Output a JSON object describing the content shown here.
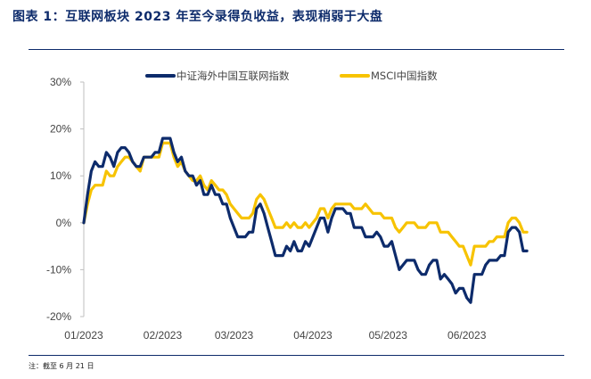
{
  "title": "图表 1：互联网板块 2023 年至今录得负收益，表现稍弱于大盘",
  "note": "注：截至 6 月 21 日",
  "colors": {
    "navy": "#0d2b6b",
    "gold": "#f7c300"
  },
  "chart_data": {
    "type": "line",
    "title": "",
    "xlabel": "",
    "ylabel": "",
    "ylim": [
      -20,
      30
    ],
    "yticks": [
      -20,
      -10,
      0,
      10,
      20,
      30
    ],
    "ytick_labels": [
      "-20%",
      "-10%",
      "0%",
      "10%",
      "20%",
      "30%"
    ],
    "xticks": [
      {
        "x": 0,
        "label": "01/2023"
      },
      {
        "x": 21,
        "label": "02/2023"
      },
      {
        "x": 40,
        "label": "03/2023"
      },
      {
        "x": 61,
        "label": "04/2023"
      },
      {
        "x": 81,
        "label": "05/2023"
      },
      {
        "x": 102,
        "label": "06/2023"
      }
    ],
    "xlim": [
      0,
      122
    ],
    "grid": false,
    "legend": "top",
    "series": [
      {
        "name": "中证海外中国互联网指数",
        "color": "#0d2b6b",
        "values": [
          [
            0,
            0
          ],
          [
            1,
            6
          ],
          [
            2,
            11
          ],
          [
            3,
            13
          ],
          [
            4,
            12
          ],
          [
            5,
            12
          ],
          [
            6,
            15
          ],
          [
            7,
            14
          ],
          [
            8,
            12
          ],
          [
            9,
            15
          ],
          [
            10,
            16
          ],
          [
            11,
            16
          ],
          [
            12,
            15
          ],
          [
            13,
            13
          ],
          [
            14,
            12
          ],
          [
            15,
            12
          ],
          [
            16,
            14
          ],
          [
            17,
            14
          ],
          [
            18,
            14
          ],
          [
            19,
            15
          ],
          [
            20,
            15
          ],
          [
            21,
            18
          ],
          [
            22,
            18
          ],
          [
            23,
            18
          ],
          [
            24,
            15
          ],
          [
            25,
            13
          ],
          [
            26,
            14
          ],
          [
            27,
            11
          ],
          [
            28,
            10
          ],
          [
            29,
            10
          ],
          [
            30,
            8
          ],
          [
            31,
            9
          ],
          [
            32,
            6
          ],
          [
            33,
            6
          ],
          [
            34,
            8
          ],
          [
            35,
            6
          ],
          [
            36,
            6
          ],
          [
            37,
            4
          ],
          [
            38,
            4
          ],
          [
            39,
            1
          ],
          [
            40,
            -1
          ],
          [
            41,
            -3
          ],
          [
            42,
            -3
          ],
          [
            43,
            -3
          ],
          [
            44,
            -2
          ],
          [
            45,
            -2
          ],
          [
            46,
            3
          ],
          [
            47,
            4
          ],
          [
            48,
            2
          ],
          [
            49,
            -1
          ],
          [
            50,
            -4
          ],
          [
            51,
            -7
          ],
          [
            52,
            -7
          ],
          [
            53,
            -7
          ],
          [
            54,
            -5
          ],
          [
            55,
            -6
          ],
          [
            56,
            -4
          ],
          [
            57,
            -6
          ],
          [
            58,
            -6
          ],
          [
            59,
            -4
          ],
          [
            60,
            -5
          ],
          [
            61,
            -3
          ],
          [
            62,
            -1
          ],
          [
            63,
            1
          ],
          [
            64,
            1
          ],
          [
            65,
            -2
          ],
          [
            66,
            1
          ],
          [
            67,
            3
          ],
          [
            68,
            3
          ],
          [
            69,
            3
          ],
          [
            70,
            2
          ],
          [
            71,
            2
          ],
          [
            72,
            -1
          ],
          [
            73,
            -1
          ],
          [
            74,
            -1
          ],
          [
            75,
            -3
          ],
          [
            76,
            -3
          ],
          [
            77,
            -3
          ],
          [
            78,
            -2
          ],
          [
            79,
            -3
          ],
          [
            80,
            -5
          ],
          [
            81,
            -5
          ],
          [
            82,
            -4
          ],
          [
            83,
            -7
          ],
          [
            84,
            -10
          ],
          [
            85,
            -9
          ],
          [
            86,
            -8
          ],
          [
            87,
            -8
          ],
          [
            88,
            -8
          ],
          [
            89,
            -10
          ],
          [
            90,
            -11
          ],
          [
            91,
            -11
          ],
          [
            92,
            -9
          ],
          [
            93,
            -8
          ],
          [
            94,
            -8
          ],
          [
            95,
            -12
          ],
          [
            96,
            -11
          ],
          [
            97,
            -12
          ],
          [
            98,
            -13
          ],
          [
            99,
            -15
          ],
          [
            100,
            -14
          ],
          [
            101,
            -14
          ],
          [
            102,
            -16
          ],
          [
            103,
            -17
          ],
          [
            104,
            -11
          ],
          [
            105,
            -11
          ],
          [
            106,
            -11
          ],
          [
            107,
            -9
          ],
          [
            108,
            -8
          ],
          [
            109,
            -8
          ],
          [
            110,
            -8
          ],
          [
            111,
            -7
          ],
          [
            112,
            -7
          ],
          [
            113,
            -2
          ],
          [
            114,
            -1
          ],
          [
            115,
            -1
          ],
          [
            116,
            -2
          ],
          [
            117,
            -6
          ],
          [
            118,
            -6
          ]
        ]
      },
      {
        "name": "MSCI中国指数",
        "color": "#f7c300",
        "values": [
          [
            0,
            0
          ],
          [
            1,
            4
          ],
          [
            2,
            7
          ],
          [
            3,
            8
          ],
          [
            4,
            8
          ],
          [
            5,
            8
          ],
          [
            6,
            11
          ],
          [
            7,
            10
          ],
          [
            8,
            10
          ],
          [
            9,
            12
          ],
          [
            10,
            13
          ],
          [
            11,
            14
          ],
          [
            12,
            14
          ],
          [
            13,
            13
          ],
          [
            14,
            12
          ],
          [
            15,
            11
          ],
          [
            16,
            14
          ],
          [
            17,
            14
          ],
          [
            18,
            14
          ],
          [
            19,
            14
          ],
          [
            20,
            14
          ],
          [
            21,
            17
          ],
          [
            22,
            17
          ],
          [
            23,
            17
          ],
          [
            24,
            14
          ],
          [
            25,
            12
          ],
          [
            26,
            13
          ],
          [
            27,
            11
          ],
          [
            28,
            10
          ],
          [
            29,
            9
          ],
          [
            30,
            9
          ],
          [
            31,
            10
          ],
          [
            32,
            8
          ],
          [
            33,
            7
          ],
          [
            34,
            9
          ],
          [
            35,
            8
          ],
          [
            36,
            7
          ],
          [
            37,
            7
          ],
          [
            38,
            6
          ],
          [
            39,
            4
          ],
          [
            40,
            3
          ],
          [
            41,
            2
          ],
          [
            42,
            1
          ],
          [
            43,
            1
          ],
          [
            44,
            1
          ],
          [
            45,
            2
          ],
          [
            46,
            5
          ],
          [
            47,
            6
          ],
          [
            48,
            5
          ],
          [
            49,
            3
          ],
          [
            50,
            1
          ],
          [
            51,
            -1
          ],
          [
            52,
            -1
          ],
          [
            53,
            -1
          ],
          [
            54,
            0
          ],
          [
            55,
            -1
          ],
          [
            56,
            0
          ],
          [
            57,
            -1
          ],
          [
            58,
            -1
          ],
          [
            59,
            0
          ],
          [
            60,
            -1
          ],
          [
            61,
            0
          ],
          [
            62,
            1
          ],
          [
            63,
            3
          ],
          [
            64,
            3
          ],
          [
            65,
            1
          ],
          [
            66,
            3
          ],
          [
            67,
            4
          ],
          [
            68,
            4
          ],
          [
            69,
            4
          ],
          [
            70,
            4
          ],
          [
            71,
            4
          ],
          [
            72,
            3
          ],
          [
            73,
            3
          ],
          [
            74,
            3
          ],
          [
            75,
            4
          ],
          [
            76,
            3
          ],
          [
            77,
            2
          ],
          [
            78,
            2
          ],
          [
            79,
            2
          ],
          [
            80,
            1
          ],
          [
            81,
            1
          ],
          [
            82,
            1
          ],
          [
            83,
            -1
          ],
          [
            84,
            -2
          ],
          [
            85,
            -1
          ],
          [
            86,
            0
          ],
          [
            87,
            0
          ],
          [
            88,
            0
          ],
          [
            89,
            -1
          ],
          [
            90,
            -1
          ],
          [
            91,
            -1
          ],
          [
            92,
            0
          ],
          [
            93,
            0
          ],
          [
            94,
            0
          ],
          [
            95,
            -2
          ],
          [
            96,
            -2
          ],
          [
            97,
            -2
          ],
          [
            98,
            -3
          ],
          [
            99,
            -4
          ],
          [
            100,
            -5
          ],
          [
            101,
            -5
          ],
          [
            102,
            -7
          ],
          [
            103,
            -9
          ],
          [
            104,
            -5
          ],
          [
            105,
            -5
          ],
          [
            106,
            -5
          ],
          [
            107,
            -5
          ],
          [
            108,
            -4
          ],
          [
            109,
            -4
          ],
          [
            110,
            -3
          ],
          [
            111,
            -3
          ],
          [
            112,
            -3
          ],
          [
            113,
            0
          ],
          [
            114,
            1
          ],
          [
            115,
            1
          ],
          [
            116,
            0
          ],
          [
            117,
            -2
          ],
          [
            118,
            -2
          ]
        ]
      }
    ]
  }
}
